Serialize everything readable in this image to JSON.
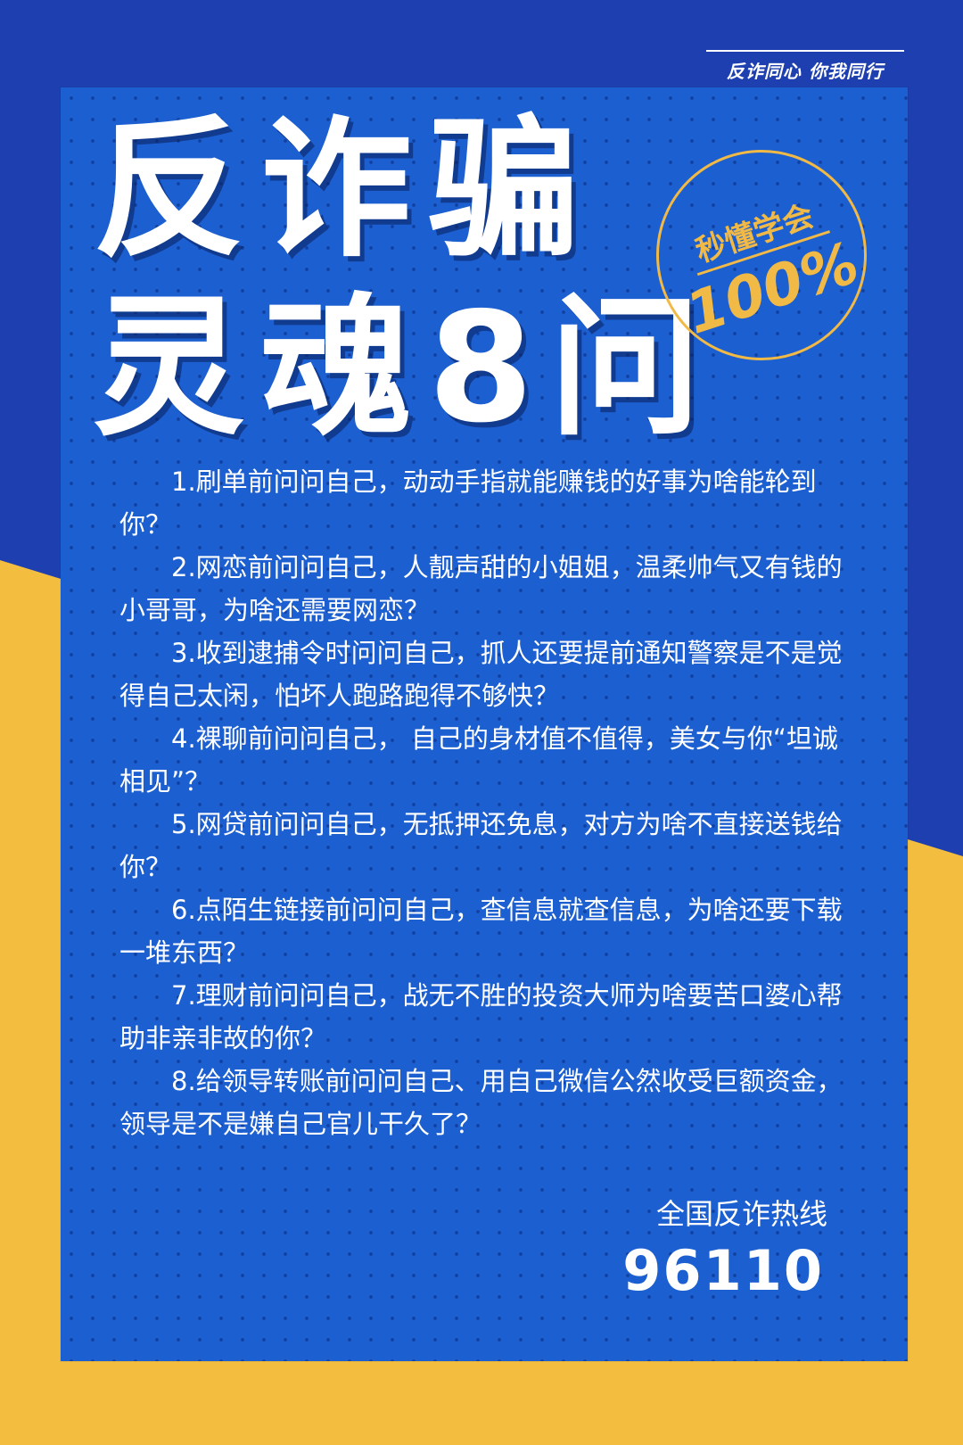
{
  "tag": "反诈同心 你我同行",
  "title": {
    "line1": "反诈骗",
    "line2": "灵魂8问"
  },
  "badge": {
    "top": "秒懂学会",
    "bottom": "100%"
  },
  "questions": [
    "1.刷单前问问自己，动动手指就能赚钱的好事为啥能轮到你？",
    "2.网恋前问问自己，人靓声甜的小姐姐，温柔帅气又有钱的小哥哥，为啥还需要网恋？",
    "3.收到逮捕令时问问自己，抓人还要提前通知警察是不是觉得自己太闲，怕坏人跑路跑得不够快？",
    "4.裸聊前问问自己， 自己的身材值不值得，美女与你“坦诚相见”？",
    "5.网贷前问问自己，无抵押还免息，对方为啥不直接送钱给你？",
    "6.点陌生链接前问问自己，查信息就查信息，为啥还要下载一堆东西？",
    "7.理财前问问自己，战无不胜的投资大师为啥要苦口婆心帮助非亲非故的你？",
    "8.给领导转账前问问自己、用自己微信公然收受巨额资金，领导是不是嫌自己官儿干久了？"
  ],
  "hotline": {
    "label": "全国反诈热线",
    "number": "96110"
  },
  "colors": {
    "navy": "#1d3fb0",
    "yellow": "#f3bd3f",
    "poster_blue": "#1c5fd0",
    "gold": "#f1b945"
  }
}
